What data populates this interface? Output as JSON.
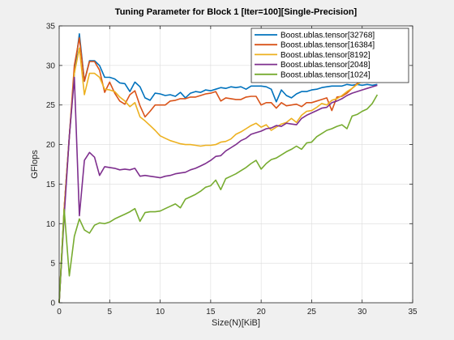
{
  "chart_data": {
    "type": "line",
    "title": "Tuning Parameter for Block 1 [Iter=100][Single-Precision]",
    "xlabel": "Size(N)[KiB]",
    "ylabel": "GFlops",
    "xlim": [
      0,
      35
    ],
    "ylim": [
      0,
      35
    ],
    "xticks": [
      0,
      5,
      10,
      15,
      20,
      25,
      30,
      35
    ],
    "yticks": [
      0,
      5,
      10,
      15,
      20,
      25,
      30,
      35
    ],
    "grid": true,
    "legend_position": "top-right",
    "x": [
      0,
      0.5,
      1,
      1.5,
      2,
      2.5,
      3,
      3.5,
      4,
      4.5,
      5,
      5.5,
      6,
      6.5,
      7,
      7.5,
      8,
      8.5,
      9,
      9.5,
      10,
      10.5,
      11,
      11.5,
      12,
      12.5,
      13,
      13.5,
      14,
      14.5,
      15,
      15.5,
      16,
      16.5,
      17,
      17.5,
      18,
      18.5,
      19,
      19.5,
      20,
      20.5,
      21,
      21.5,
      22,
      22.5,
      23,
      23.5,
      24,
      24.5,
      25,
      25.5,
      26,
      26.5,
      27,
      27.5,
      28,
      28.5,
      29,
      29.5,
      30,
      30.5,
      31,
      31.5
    ],
    "series": [
      {
        "name": "Boost.ublas.tensor[32768]",
        "color": "#0072bd",
        "values": [
          0,
          12,
          21,
          29,
          34,
          28,
          30.6,
          30.6,
          30.0,
          28.5,
          28.5,
          28.3,
          27.8,
          27.7,
          26.7,
          27.9,
          27.3,
          25.9,
          25.6,
          26.5,
          26.4,
          26.2,
          26.3,
          26.1,
          26.6,
          25.9,
          26.5,
          26.7,
          26.6,
          26.9,
          26.8,
          27.0,
          27.2,
          27.1,
          27.3,
          27.2,
          27.3,
          27.0,
          27.4,
          27.4,
          27.4,
          27.3,
          27.0,
          25.4,
          26.9,
          26.2,
          25.9,
          26.4,
          26.7,
          26.7,
          26.9,
          27.0,
          27.2,
          27.3,
          27.4,
          27.4,
          27.4,
          27.6,
          27.5,
          27.6,
          27.5,
          27.6,
          27.5,
          27.6
        ]
      },
      {
        "name": "Boost.ublas.tensor[16384]",
        "color": "#d95319",
        "values": [
          0,
          12,
          21,
          30,
          33.5,
          28,
          30.5,
          30.5,
          29.4,
          26.6,
          27.9,
          26.5,
          25.5,
          25.1,
          26.3,
          26.8,
          24.9,
          23.5,
          24.2,
          25.0,
          25.0,
          25.0,
          25.5,
          25.6,
          25.8,
          25.8,
          26.0,
          26.0,
          26.2,
          26.4,
          26.5,
          26.7,
          25.5,
          25.9,
          25.8,
          25.7,
          25.7,
          26.0,
          26.1,
          26.1,
          25.0,
          25.3,
          25.3,
          24.6,
          25.3,
          24.9,
          25.0,
          25.1,
          24.8,
          25.3,
          25.3,
          25.5,
          25.7,
          25.9,
          24.3,
          26.0,
          26.1,
          26.5,
          27.1,
          27.7,
          28.2,
          28.8,
          29.2,
          29.6
        ]
      },
      {
        "name": "Boost.ublas.tensor[8192]",
        "color": "#edb120",
        "values": [
          0,
          12,
          21,
          29,
          32.2,
          26.3,
          29.0,
          29.0,
          28.5,
          27.0,
          26.9,
          26.7,
          26.0,
          25.5,
          24.8,
          25.3,
          23.5,
          23.0,
          22.4,
          21.8,
          21.1,
          20.8,
          20.5,
          20.3,
          20.1,
          20.0,
          20.0,
          19.9,
          19.8,
          19.9,
          19.9,
          20.0,
          20.3,
          20.4,
          20.7,
          21.3,
          21.6,
          22.0,
          22.4,
          22.7,
          22.2,
          22.5,
          21.8,
          22.2,
          22.6,
          22.8,
          23.3,
          22.8,
          23.7,
          24.2,
          24.3,
          24.7,
          25.2,
          25.0,
          25.6,
          25.8,
          26.2,
          26.7,
          27.1,
          27.6,
          28.0,
          28.6,
          29.1,
          29.6
        ]
      },
      {
        "name": "Boost.ublas.tensor[2048]",
        "color": "#7e2f8e",
        "values": [
          0,
          11,
          21,
          28.5,
          11.0,
          18.0,
          19.0,
          18.4,
          16.1,
          17.2,
          17.1,
          17.0,
          16.8,
          16.9,
          16.8,
          17.0,
          16.0,
          16.1,
          16.0,
          15.9,
          15.8,
          16.0,
          16.1,
          16.3,
          16.4,
          16.5,
          16.8,
          17.0,
          17.3,
          17.6,
          18.0,
          18.5,
          18.6,
          19.2,
          19.6,
          20.0,
          20.5,
          20.8,
          21.3,
          21.5,
          21.7,
          22.0,
          22.1,
          22.4,
          22.3,
          22.7,
          22.6,
          22.5,
          23.3,
          23.7,
          24.0,
          24.3,
          24.6,
          24.7,
          25.3,
          25.5,
          25.8,
          26.2,
          26.5,
          26.7,
          26.9,
          27.1,
          27.3,
          27.5
        ]
      },
      {
        "name": "Boost.ublas.tensor[1024]",
        "color": "#77ac30",
        "values": [
          0,
          11.8,
          3.4,
          8.4,
          10.6,
          9.2,
          8.8,
          9.8,
          10.1,
          10.0,
          10.2,
          10.6,
          10.9,
          11.2,
          11.5,
          11.9,
          10.3,
          11.4,
          11.5,
          11.5,
          11.6,
          11.9,
          12.2,
          12.5,
          12.0,
          13.1,
          13.4,
          13.7,
          14.1,
          14.6,
          14.8,
          15.5,
          14.3,
          15.7,
          16.0,
          16.3,
          16.7,
          17.1,
          17.6,
          18.0,
          16.9,
          17.6,
          18.1,
          18.3,
          18.7,
          19.1,
          19.4,
          19.8,
          19.4,
          20.2,
          20.3,
          21.0,
          21.4,
          21.8,
          22.0,
          22.3,
          22.5,
          22.0,
          23.6,
          23.8,
          24.2,
          24.5,
          25.2,
          26.3
        ]
      }
    ]
  }
}
